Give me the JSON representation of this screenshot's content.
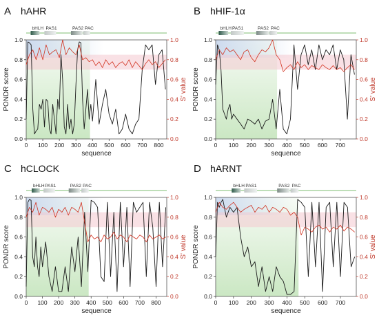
{
  "colors": {
    "pondr_line": "#1a1a1a",
    "s_value_line": "#d2301e",
    "right_axis": "#c0392b",
    "left_axis": "#222222",
    "region_green": "#c8e6c0",
    "region_pink": "#f4c9cf",
    "region_blue": "#c9d7ee",
    "sequence_bar": "#a8d4a0"
  },
  "chart_data": [
    {
      "type": "line",
      "panel": "A",
      "title": "hAHR",
      "xlabel": "sequence",
      "ylabel_left": "PONDR score",
      "ylabel_right": "S' value",
      "xlim": [
        0,
        848
      ],
      "ylim_left": [
        0,
        1.0
      ],
      "ylim_right": [
        0,
        1.0
      ],
      "x_ticks": [
        0,
        100,
        200,
        300,
        400,
        500,
        600,
        700,
        800
      ],
      "y_ticks": [
        "0.0",
        "0.2",
        "0.4",
        "0.6",
        "0.8",
        "1.0"
      ],
      "domains": [
        {
          "name": "bHLH",
          "start": 27,
          "end": 80,
          "shade": "dark"
        },
        {
          "name": "PAS1",
          "start": 110,
          "end": 180,
          "shade": "light"
        },
        {
          "name": "PAS2",
          "start": 270,
          "end": 340,
          "shade": "mid"
        },
        {
          "name": "PAC",
          "start": 345,
          "end": 385,
          "shade": "light"
        }
      ],
      "series": [
        {
          "key": "pondr",
          "x": [
            0,
            10,
            20,
            30,
            40,
            50,
            60,
            70,
            80,
            90,
            100,
            110,
            120,
            130,
            140,
            150,
            160,
            170,
            180,
            190,
            200,
            210,
            220,
            230,
            240,
            250,
            260,
            270,
            280,
            290,
            300,
            310,
            320,
            330,
            340,
            350,
            360,
            370,
            380,
            390,
            400,
            420,
            440,
            460,
            480,
            500,
            520,
            540,
            560,
            580,
            600,
            620,
            640,
            660,
            680,
            700,
            720,
            740,
            760,
            780,
            800,
            820,
            840
          ],
          "values": [
            0.2,
            0.98,
            0.97,
            0.95,
            0.3,
            0.05,
            0.08,
            0.1,
            0.35,
            0.3,
            0.4,
            0.12,
            0.4,
            0.38,
            0.1,
            0.05,
            0.35,
            0.2,
            0.05,
            0.4,
            0.3,
            0.85,
            0.6,
            0.12,
            0.05,
            0.35,
            0.1,
            0.2,
            0.05,
            0.15,
            0.55,
            0.9,
            0.98,
            0.97,
            0.4,
            0.1,
            0.3,
            0.5,
            0.2,
            0.35,
            0.18,
            0.6,
            0.15,
            0.35,
            0.5,
            0.25,
            0.15,
            0.3,
            0.05,
            0.1,
            0.25,
            0.1,
            0.05,
            0.15,
            0.2,
            0.7,
            0.95,
            0.9,
            0.95,
            0.55,
            0.85,
            0.9,
            0.5
          ]
        },
        {
          "key": "s_value",
          "x": [
            0,
            20,
            40,
            60,
            80,
            100,
            120,
            140,
            160,
            180,
            200,
            220,
            240,
            260,
            280,
            300,
            320,
            340,
            360,
            380,
            400,
            420,
            440,
            460,
            480,
            500,
            520,
            540,
            560,
            580,
            600,
            620,
            640,
            660,
            680,
            700,
            720,
            740,
            760,
            780,
            800,
            820,
            840
          ],
          "values": [
            0.75,
            0.85,
            0.9,
            0.8,
            0.92,
            0.8,
            0.95,
            0.85,
            0.88,
            0.9,
            0.82,
            1.0,
            0.85,
            0.92,
            0.88,
            0.85,
            0.95,
            0.8,
            0.82,
            0.78,
            0.8,
            0.74,
            0.78,
            0.72,
            0.8,
            0.75,
            0.78,
            0.72,
            0.76,
            0.78,
            0.74,
            0.8,
            0.72,
            0.78,
            0.74,
            0.7,
            0.76,
            0.8,
            0.75,
            0.78,
            0.72,
            0.76,
            0.8
          ]
        }
      ]
    },
    {
      "type": "line",
      "panel": "B",
      "title": "hHIF-1α",
      "xlabel": "sequence",
      "ylabel_left": "PONDR score",
      "ylabel_right": "S' value",
      "xlim": [
        0,
        790
      ],
      "ylim_left": [
        0,
        1.0
      ],
      "ylim_right": [
        0,
        1.0
      ],
      "x_ticks": [
        0,
        100,
        200,
        300,
        400,
        500,
        600,
        700
      ],
      "y_ticks": [
        "0.0",
        "0.2",
        "0.4",
        "0.6",
        "0.8",
        "1.0"
      ],
      "domains": [
        {
          "name": "bHLH",
          "start": 17,
          "end": 70,
          "shade": "dark"
        },
        {
          "name": "PAS1",
          "start": 85,
          "end": 158,
          "shade": "light"
        },
        {
          "name": "PAS2",
          "start": 228,
          "end": 298,
          "shade": "mid"
        },
        {
          "name": "PAC",
          "start": 302,
          "end": 345,
          "shade": "light"
        }
      ],
      "series": [
        {
          "key": "pondr",
          "x": [
            0,
            10,
            20,
            30,
            40,
            50,
            60,
            70,
            80,
            90,
            100,
            120,
            140,
            160,
            180,
            200,
            220,
            240,
            260,
            280,
            300,
            320,
            340,
            360,
            380,
            400,
            420,
            440,
            460,
            480,
            500,
            520,
            540,
            560,
            580,
            600,
            620,
            640,
            660,
            680,
            700,
            720,
            740,
            760,
            780
          ],
          "values": [
            0.55,
            0.95,
            0.9,
            0.7,
            0.3,
            0.25,
            0.2,
            0.3,
            0.35,
            0.2,
            0.25,
            0.2,
            0.15,
            0.1,
            0.2,
            0.18,
            0.15,
            0.2,
            0.1,
            0.18,
            0.2,
            0.4,
            0.1,
            0.5,
            0.1,
            0.05,
            0.2,
            0.95,
            0.5,
            0.85,
            0.95,
            0.75,
            0.9,
            0.7,
            0.95,
            0.8,
            0.9,
            0.85,
            0.95,
            0.7,
            0.9,
            0.8,
            0.2,
            0.85,
            0.65
          ]
        },
        {
          "key": "s_value",
          "x": [
            0,
            20,
            40,
            60,
            80,
            100,
            120,
            140,
            160,
            180,
            200,
            220,
            240,
            260,
            280,
            300,
            320,
            340,
            360,
            380,
            400,
            420,
            440,
            460,
            480,
            500,
            520,
            540,
            560,
            580,
            600,
            620,
            640,
            660,
            680,
            700,
            720,
            740,
            760,
            780
          ],
          "values": [
            0.8,
            0.9,
            0.85,
            0.92,
            0.88,
            0.9,
            0.85,
            0.8,
            0.88,
            0.9,
            0.82,
            0.78,
            0.85,
            0.9,
            0.88,
            0.92,
            1.0,
            0.85,
            0.8,
            0.68,
            0.72,
            0.75,
            0.7,
            0.78,
            0.72,
            0.75,
            0.7,
            0.74,
            0.72,
            0.7,
            0.75,
            0.72,
            0.7,
            0.74,
            0.7,
            0.72,
            0.68,
            0.72,
            0.75,
            0.7
          ]
        }
      ]
    },
    {
      "type": "line",
      "panel": "C",
      "title": "hCLOCK",
      "xlabel": "sequence",
      "ylabel_left": "PONDR score",
      "ylabel_right": "S' value",
      "xlim": [
        0,
        866
      ],
      "ylim_left": [
        0,
        1.0
      ],
      "ylim_right": [
        0,
        1.0
      ],
      "x_ticks": [
        0,
        100,
        200,
        300,
        400,
        500,
        600,
        700,
        800
      ],
      "y_ticks": [
        "0.0",
        "0.2",
        "0.4",
        "0.6",
        "0.8",
        "1.0"
      ],
      "domains": [
        {
          "name": "bHLH",
          "start": 34,
          "end": 84,
          "shade": "dark"
        },
        {
          "name": "PAS1",
          "start": 107,
          "end": 177,
          "shade": "light"
        },
        {
          "name": "PAS2",
          "start": 262,
          "end": 332,
          "shade": "mid"
        },
        {
          "name": "PAC",
          "start": 340,
          "end": 385,
          "shade": "light"
        }
      ],
      "series": [
        {
          "key": "pondr",
          "x": [
            0,
            10,
            20,
            30,
            40,
            50,
            60,
            70,
            80,
            90,
            100,
            120,
            140,
            160,
            180,
            200,
            220,
            240,
            260,
            280,
            300,
            320,
            340,
            360,
            380,
            400,
            420,
            440,
            460,
            480,
            500,
            520,
            540,
            560,
            580,
            600,
            620,
            640,
            660,
            680,
            700,
            720,
            740,
            760,
            780,
            800,
            820,
            840,
            860
          ],
          "values": [
            0.1,
            0.95,
            0.98,
            0.97,
            0.4,
            0.3,
            0.6,
            0.3,
            0.2,
            0.5,
            0.3,
            0.55,
            0.2,
            0.05,
            0.3,
            0.05,
            0.05,
            0.3,
            0.05,
            0.5,
            0.25,
            0.6,
            0.1,
            0.85,
            0.25,
            0.97,
            0.95,
            0.9,
            0.2,
            0.15,
            0.95,
            0.2,
            0.85,
            0.05,
            0.95,
            0.3,
            0.9,
            0.1,
            0.95,
            0.85,
            0.9,
            0.95,
            0.2,
            0.95,
            0.7,
            0.1,
            0.95,
            0.3,
            0.9
          ]
        },
        {
          "key": "s_value",
          "x": [
            0,
            20,
            40,
            60,
            80,
            100,
            120,
            140,
            160,
            180,
            200,
            220,
            240,
            260,
            280,
            300,
            320,
            340,
            360,
            380,
            400,
            420,
            440,
            460,
            480,
            500,
            520,
            540,
            560,
            580,
            600,
            620,
            640,
            660,
            680,
            700,
            720,
            740,
            760,
            780,
            800,
            820,
            840,
            860
          ],
          "values": [
            0.8,
            0.9,
            0.85,
            0.95,
            0.82,
            0.9,
            0.88,
            0.85,
            0.9,
            0.8,
            0.88,
            0.85,
            0.9,
            0.82,
            0.9,
            0.88,
            0.85,
            0.95,
            0.75,
            0.55,
            0.62,
            0.58,
            0.6,
            0.55,
            0.62,
            0.58,
            0.6,
            0.65,
            0.58,
            0.62,
            0.6,
            0.55,
            0.62,
            0.6,
            0.58,
            0.62,
            0.6,
            0.55,
            0.62,
            0.58,
            0.6,
            0.62,
            0.58,
            0.6
          ]
        }
      ]
    },
    {
      "type": "line",
      "panel": "D",
      "title": "hARNT",
      "xlabel": "sequence",
      "ylabel_left": "PONDR score",
      "ylabel_right": "S' value",
      "xlim": [
        0,
        789
      ],
      "ylim_left": [
        0,
        1.0
      ],
      "ylim_right": [
        0,
        1.0
      ],
      "x_ticks": [
        0,
        100,
        200,
        300,
        400,
        500,
        600,
        700
      ],
      "y_ticks": [
        "0.0",
        "0.2",
        "0.4",
        "0.6",
        "0.8",
        "1.0"
      ],
      "domains": [
        {
          "name": "bHLH",
          "start": 90,
          "end": 140,
          "shade": "dark"
        },
        {
          "name": "PAS1",
          "start": 160,
          "end": 232,
          "shade": "light"
        },
        {
          "name": "PAS2",
          "start": 345,
          "end": 415,
          "shade": "mid"
        },
        {
          "name": "PAC",
          "start": 420,
          "end": 465,
          "shade": "light"
        }
      ],
      "series": [
        {
          "key": "pondr",
          "x": [
            0,
            10,
            20,
            30,
            40,
            60,
            80,
            100,
            120,
            140,
            160,
            180,
            200,
            220,
            240,
            260,
            280,
            300,
            320,
            340,
            360,
            380,
            400,
            420,
            440,
            460,
            480,
            500,
            520,
            540,
            560,
            580,
            600,
            620,
            640,
            660,
            680,
            700,
            720,
            740,
            760,
            780
          ],
          "values": [
            0.4,
            0.95,
            0.9,
            0.95,
            0.98,
            0.8,
            0.9,
            0.85,
            0.9,
            0.6,
            0.4,
            0.5,
            0.3,
            0.35,
            0.1,
            0.3,
            0.05,
            0.2,
            0.05,
            0.3,
            0.2,
            0.15,
            0.02,
            0.02,
            0.05,
            0.98,
            0.95,
            0.9,
            0.2,
            0.95,
            0.3,
            0.95,
            0.05,
            0.9,
            0.95,
            0.3,
            0.95,
            0.2,
            0.95,
            0.9,
            0.3,
            0.4
          ]
        },
        {
          "key": "s_value",
          "x": [
            0,
            20,
            40,
            60,
            80,
            100,
            120,
            140,
            160,
            180,
            200,
            220,
            240,
            260,
            280,
            300,
            320,
            340,
            360,
            380,
            400,
            420,
            440,
            460,
            480,
            500,
            520,
            540,
            560,
            580,
            600,
            620,
            640,
            660,
            680,
            700,
            720,
            740,
            760,
            780
          ],
          "values": [
            0.85,
            0.95,
            0.9,
            0.88,
            0.92,
            0.95,
            0.9,
            0.85,
            0.88,
            0.9,
            0.92,
            0.85,
            0.9,
            0.88,
            0.92,
            0.85,
            0.9,
            0.88,
            0.85,
            0.9,
            0.88,
            0.82,
            0.85,
            0.8,
            0.62,
            0.7,
            0.68,
            0.65,
            0.7,
            0.72,
            0.68,
            0.7,
            0.65,
            0.7,
            0.68,
            0.72,
            0.66,
            0.7,
            0.68,
            0.65
          ]
        }
      ]
    }
  ]
}
